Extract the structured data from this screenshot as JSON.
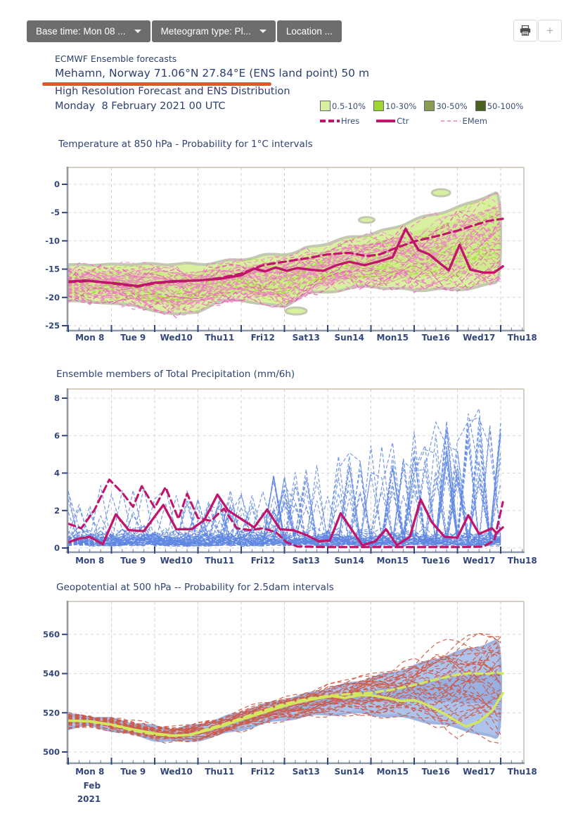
{
  "toolbar": {
    "base_time_label": "Base time: Mon 08 ...",
    "meteogram_type_label": "Meteogram type: Pl...",
    "location_label": "Location ...",
    "plus_label": "+"
  },
  "header": {
    "product_line": "ECMWF Ensemble forecasts",
    "location_line": "Mehamn, Norway 71.06°N 27.84°E (ENS land point) 50 m",
    "subtitle": "High Resolution Forecast and ENS Distribution",
    "datetime": "Monday  8 February 2021 00 UTC",
    "underline_color": "#e2572b",
    "text_color": "#2c4170"
  },
  "legend": {
    "probability_classes": [
      {
        "label": "0.5-10%",
        "color": "#d9f0a2"
      },
      {
        "label": "10-30%",
        "color": "#9fd636"
      },
      {
        "label": "30-50%",
        "color": "#8b9d52"
      },
      {
        "label": "50-100%",
        "color": "#4c611f"
      }
    ],
    "lines": [
      {
        "label": "Hres",
        "style": "dashed-bold",
        "color": "#c0156b"
      },
      {
        "label": "Ctr",
        "style": "solid-bold",
        "color": "#c0156b"
      },
      {
        "label": "EMem",
        "style": "dashed-thin",
        "color": "#f2a0d2"
      }
    ]
  },
  "axis": {
    "categories": [
      "Mon 8",
      "Tue 9",
      "Wed10",
      "Thu11",
      "Fri12",
      "Sat13",
      "Sun14",
      "Mon15",
      "Tue16",
      "Wed17",
      "Thu18"
    ],
    "highlight_category": "Sun14",
    "highlight_color": "#e8473c",
    "label_color": "#33477c",
    "month_label": "Feb",
    "year_label": "2021",
    "x_unit": "days since Mon 8 Feb 2021 00 UTC",
    "data_end_day": 10.05
  },
  "chart_data": [
    {
      "type": "area",
      "title": "Temperature at 850 hPa - Probability for 1°C intervals",
      "ylim": [
        -25,
        0
      ],
      "yticks": [
        0,
        -5,
        -10,
        -15,
        -20,
        -25
      ],
      "band": {
        "t": [
          0,
          0.5,
          1,
          1.5,
          2,
          2.5,
          3,
          3.5,
          4,
          4.5,
          5,
          5.25,
          5.5,
          6,
          6.5,
          7,
          7.5,
          8,
          8.5,
          9,
          9.5,
          10.05
        ],
        "upper": [
          -14.4,
          -14.1,
          -14.3,
          -14.0,
          -14.2,
          -14.0,
          -14.2,
          -13.7,
          -13.3,
          -12.6,
          -12.3,
          -12.1,
          -11.3,
          -10.4,
          -9.4,
          -8.8,
          -7.8,
          -6.3,
          -5.2,
          -4.2,
          -2.6,
          -1.2
        ],
        "lower": [
          -20.4,
          -21.0,
          -20.8,
          -21.6,
          -22.2,
          -23.2,
          -22.4,
          -20.8,
          -20.3,
          -21.3,
          -21.6,
          -20.3,
          -19.4,
          -19.0,
          -18.4,
          -18.0,
          -18.4,
          -18.8,
          -18.4,
          -18.8,
          -17.9,
          -17.4
        ]
      },
      "series": [
        {
          "name": "Hres",
          "style": "dashed",
          "color": "#c0156b",
          "points": [
            [
              0,
              -17.3
            ],
            [
              0.5,
              -17.1
            ],
            [
              1,
              -17.5
            ],
            [
              1.6,
              -18.1
            ],
            [
              2,
              -17.5
            ],
            [
              2.5,
              -17.2
            ],
            [
              3,
              -17.0
            ],
            [
              3.5,
              -16.6
            ],
            [
              4,
              -15.8
            ],
            [
              4.5,
              -14.3
            ],
            [
              5,
              -13.7
            ],
            [
              5.5,
              -13.1
            ],
            [
              6,
              -12.4
            ],
            [
              6.5,
              -12.1
            ],
            [
              6.9,
              -12.7
            ],
            [
              7.2,
              -12.4
            ],
            [
              7.6,
              -11.2
            ],
            [
              8,
              -10.1
            ],
            [
              8.5,
              -9.2
            ],
            [
              9,
              -8.2
            ],
            [
              9.4,
              -7.2
            ],
            [
              9.7,
              -6.5
            ],
            [
              10.05,
              -6.1
            ]
          ]
        },
        {
          "name": "Ctr",
          "style": "solid",
          "color": "#c0156b",
          "points": [
            [
              0,
              -17.2
            ],
            [
              0.4,
              -17.0
            ],
            [
              0.8,
              -17.3
            ],
            [
              1.2,
              -17.6
            ],
            [
              1.6,
              -18.0
            ],
            [
              2.0,
              -17.4
            ],
            [
              2.5,
              -17.1
            ],
            [
              3.0,
              -17.0
            ],
            [
              3.5,
              -16.7
            ],
            [
              4.0,
              -16.1
            ],
            [
              4.3,
              -14.9
            ],
            [
              4.55,
              -15.4
            ],
            [
              4.8,
              -14.7
            ],
            [
              5.05,
              -15.3
            ],
            [
              5.3,
              -14.8
            ],
            [
              5.6,
              -15.1
            ],
            [
              5.9,
              -15.3
            ],
            [
              6.2,
              -14.3
            ],
            [
              6.5,
              -13.7
            ],
            [
              6.85,
              -14.3
            ],
            [
              7.2,
              -13.6
            ],
            [
              7.5,
              -12.9
            ],
            [
              7.8,
              -7.9
            ],
            [
              8.1,
              -11.6
            ],
            [
              8.35,
              -12.4
            ],
            [
              8.6,
              -14.0
            ],
            [
              8.8,
              -15.2
            ],
            [
              9.05,
              -10.7
            ],
            [
              9.3,
              -15.1
            ],
            [
              9.6,
              -15.6
            ],
            [
              9.85,
              -15.6
            ],
            [
              10.05,
              -14.5
            ]
          ]
        }
      ],
      "members": {
        "name": "EMem",
        "count": 40,
        "style": "dashed-thin",
        "color": "#ee7fc4"
      },
      "fill_color": "#d9f0a0"
    },
    {
      "type": "line",
      "title": "Ensemble members of Total Precipitation (mm/6h)",
      "ylim": [
        0,
        8
      ],
      "yticks": [
        8,
        6,
        4,
        2,
        0
      ],
      "series": [
        {
          "name": "Hres",
          "style": "dashed",
          "color": "#c0156b",
          "points": [
            [
              0,
              1.3
            ],
            [
              0.3,
              1.05
            ],
            [
              0.6,
              2.0
            ],
            [
              0.95,
              3.65
            ],
            [
              1.25,
              2.95
            ],
            [
              1.5,
              2.2
            ],
            [
              1.7,
              3.3
            ],
            [
              2.0,
              2.15
            ],
            [
              2.25,
              3.25
            ],
            [
              2.55,
              1.55
            ],
            [
              2.75,
              2.9
            ],
            [
              3.0,
              1.6
            ],
            [
              3.3,
              1.45
            ],
            [
              3.6,
              2.1
            ],
            [
              3.9,
              1.05
            ],
            [
              4.2,
              0.95
            ],
            [
              4.5,
              1.05
            ],
            [
              4.8,
              0.85
            ],
            [
              5.05,
              0.3
            ],
            [
              5.3,
              0.08
            ],
            [
              6,
              0.05
            ],
            [
              7,
              0.05
            ],
            [
              8,
              0.05
            ],
            [
              9,
              0.05
            ],
            [
              9.6,
              0.07
            ],
            [
              9.85,
              0.4
            ],
            [
              10.05,
              2.45
            ]
          ]
        },
        {
          "name": "Ctr",
          "style": "solid",
          "color": "#c0156b",
          "points": [
            [
              0,
              0.3
            ],
            [
              0.25,
              0.5
            ],
            [
              0.5,
              0.6
            ],
            [
              0.8,
              0.2
            ],
            [
              1.1,
              1.8
            ],
            [
              1.4,
              0.95
            ],
            [
              1.75,
              0.9
            ],
            [
              2.2,
              2.3
            ],
            [
              2.5,
              1.0
            ],
            [
              2.85,
              1.0
            ],
            [
              3.15,
              1.5
            ],
            [
              3.45,
              2.85
            ],
            [
              3.7,
              2.0
            ],
            [
              4.0,
              1.55
            ],
            [
              4.3,
              1.1
            ],
            [
              4.6,
              2.05
            ],
            [
              4.9,
              1.0
            ],
            [
              5.2,
              0.95
            ],
            [
              5.5,
              0.7
            ],
            [
              5.8,
              0.35
            ],
            [
              6.05,
              0.4
            ],
            [
              6.3,
              1.85
            ],
            [
              6.55,
              1.0
            ],
            [
              6.8,
              0.15
            ],
            [
              7.1,
              0.35
            ],
            [
              7.35,
              1.0
            ],
            [
              7.6,
              0.15
            ],
            [
              7.9,
              0.6
            ],
            [
              8.15,
              2.6
            ],
            [
              8.4,
              1.4
            ],
            [
              8.7,
              0.6
            ],
            [
              9.0,
              0.55
            ],
            [
              9.25,
              1.75
            ],
            [
              9.5,
              0.75
            ],
            [
              9.8,
              1.05
            ],
            [
              9.9,
              0.8
            ],
            [
              10.05,
              1.1
            ]
          ]
        }
      ],
      "members": {
        "name": "EMem",
        "count": 50,
        "style": "dashed-thin",
        "color": "#5e86e2",
        "max_spike": 7.5
      }
    },
    {
      "type": "area",
      "title": "Geopotential at 500 hPa -- Probability for 2.5dam intervals",
      "ylim": [
        500,
        560
      ],
      "yticks": [
        560,
        540,
        520,
        500
      ],
      "band": {
        "t": [
          0,
          0.5,
          1,
          1.5,
          2,
          2.5,
          3,
          3.5,
          4,
          4.5,
          5,
          5.5,
          6,
          6.5,
          7,
          7.5,
          8,
          8.5,
          9,
          9.5,
          10.05
        ],
        "upper": [
          518.5,
          518,
          516.5,
          514.5,
          512.5,
          511.5,
          513.5,
          516.5,
          520,
          523.5,
          526.5,
          529,
          532,
          534.5,
          537.5,
          540,
          543.5,
          547,
          550.5,
          553.5,
          557.5
        ],
        "lower": [
          512.5,
          513.5,
          511.5,
          509,
          506.5,
          505.5,
          506.5,
          509,
          512,
          514.5,
          517,
          518.5,
          519.5,
          520,
          519.5,
          518.5,
          517,
          515,
          512.5,
          510,
          505.5
        ]
      },
      "series": [
        {
          "name": "Hres",
          "style": "dashed",
          "color": "#d3e75c",
          "points": [
            [
              0,
              516
            ],
            [
              0.5,
              515.5
            ],
            [
              1,
              513.8
            ],
            [
              1.5,
              511
            ],
            [
              2,
              509
            ],
            [
              2.4,
              508.2
            ],
            [
              2.8,
              508.8
            ],
            [
              3.2,
              511.5
            ],
            [
              3.6,
              514.2
            ],
            [
              4,
              517.2
            ],
            [
              4.5,
              521
            ],
            [
              5,
              524.5
            ],
            [
              5.5,
              527
            ],
            [
              6,
              528.6
            ],
            [
              6.5,
              529.6
            ],
            [
              7,
              530.2
            ],
            [
              7.5,
              531.8
            ],
            [
              8,
              534.2
            ],
            [
              8.5,
              537
            ],
            [
              9,
              539.5
            ],
            [
              9.3,
              540.2
            ],
            [
              9.7,
              539.8
            ],
            [
              9.9,
              540.6
            ],
            [
              10.05,
              540
            ]
          ]
        },
        {
          "name": "Ctr",
          "style": "solid",
          "color": "#d3e75c",
          "points": [
            [
              0,
              516
            ],
            [
              0.5,
              515.7
            ],
            [
              1,
              514
            ],
            [
              1.5,
              511.5
            ],
            [
              2,
              509.5
            ],
            [
              2.4,
              508.4
            ],
            [
              2.8,
              508.7
            ],
            [
              3.2,
              511
            ],
            [
              3.6,
              513.5
            ],
            [
              4,
              516.5
            ],
            [
              4.5,
              520
            ],
            [
              5,
              523.5
            ],
            [
              5.4,
              525.8
            ],
            [
              5.8,
              527.5
            ],
            [
              6.1,
              528.5
            ],
            [
              6.4,
              527.6
            ],
            [
              6.7,
              528.8
            ],
            [
              7,
              529
            ],
            [
              7.4,
              527.4
            ],
            [
              7.7,
              526
            ],
            [
              8,
              526.6
            ],
            [
              8.3,
              524
            ],
            [
              8.7,
              519.5
            ],
            [
              9,
              515.5
            ],
            [
              9.2,
              513
            ],
            [
              9.5,
              515.5
            ],
            [
              9.8,
              521
            ],
            [
              10.05,
              530
            ]
          ]
        }
      ],
      "members": {
        "name": "EMem",
        "count": 40,
        "style": "dashed-thin",
        "color": "#cd5a47"
      },
      "fill_color": "#aec3ec"
    }
  ]
}
